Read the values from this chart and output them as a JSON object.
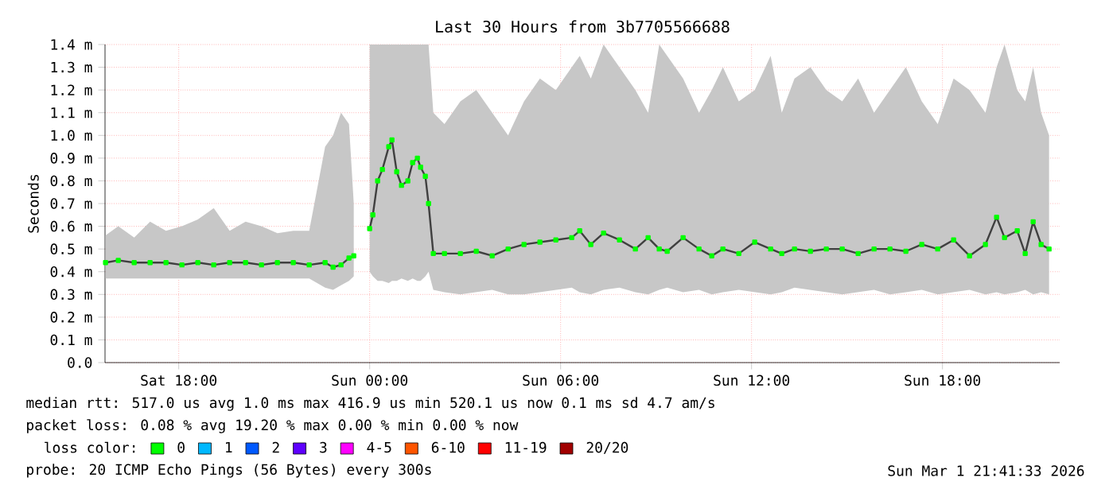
{
  "chart_data": {
    "type": "line",
    "title": "Last 30 Hours from 3b7705566688",
    "ylabel": "Seconds",
    "x": [
      "2026-02-28T15:42",
      "2026-02-28T16:06",
      "2026-02-28T16:36",
      "2026-02-28T17:06",
      "2026-02-28T17:36",
      "2026-02-28T18:06",
      "2026-02-28T18:36",
      "2026-02-28T19:06",
      "2026-02-28T19:36",
      "2026-02-28T20:06",
      "2026-02-28T20:36",
      "2026-02-28T21:06",
      "2026-02-28T21:36",
      "2026-02-28T22:06",
      "2026-02-28T22:36",
      "2026-02-28T22:51",
      "2026-02-28T23:06",
      "2026-02-28T23:21",
      "2026-02-28T23:30",
      "2026-02-28T23:45",
      "2026-03-01T00:00",
      "2026-03-01T00:06",
      "2026-03-01T00:15",
      "2026-03-01T00:24",
      "2026-03-01T00:36",
      "2026-03-01T00:42",
      "2026-03-01T00:51",
      "2026-03-01T01:00",
      "2026-03-01T01:12",
      "2026-03-01T01:21",
      "2026-03-01T01:30",
      "2026-03-01T01:36",
      "2026-03-01T01:45",
      "2026-03-01T01:51",
      "2026-03-01T02:00",
      "2026-03-01T02:21",
      "2026-03-01T02:51",
      "2026-03-01T03:21",
      "2026-03-01T03:51",
      "2026-03-01T04:21",
      "2026-03-01T04:51",
      "2026-03-01T05:21",
      "2026-03-01T05:51",
      "2026-03-01T06:21",
      "2026-03-01T06:36",
      "2026-03-01T06:57",
      "2026-03-01T07:21",
      "2026-03-01T07:51",
      "2026-03-01T08:21",
      "2026-03-01T08:45",
      "2026-03-01T09:06",
      "2026-03-01T09:21",
      "2026-03-01T09:51",
      "2026-03-01T10:21",
      "2026-03-01T10:45",
      "2026-03-01T11:06",
      "2026-03-01T11:36",
      "2026-03-01T12:06",
      "2026-03-01T12:36",
      "2026-03-01T12:57",
      "2026-03-01T13:21",
      "2026-03-01T13:51",
      "2026-03-01T14:21",
      "2026-03-01T14:51",
      "2026-03-01T15:21",
      "2026-03-01T15:51",
      "2026-03-01T16:21",
      "2026-03-01T16:51",
      "2026-03-01T17:21",
      "2026-03-01T17:51",
      "2026-03-01T18:21",
      "2026-03-01T18:51",
      "2026-03-01T19:21",
      "2026-03-01T19:42",
      "2026-03-01T19:57",
      "2026-03-01T20:21",
      "2026-03-01T20:36",
      "2026-03-01T20:51",
      "2026-03-01T21:06",
      "2026-03-01T21:21"
    ],
    "series": [
      {
        "name": "0",
        "color": "#00ff00",
        "values": [
          0.44,
          0.45,
          0.44,
          0.44,
          0.44,
          0.43,
          0.44,
          0.43,
          0.44,
          0.44,
          0.43,
          0.44,
          0.44,
          0.43,
          0.44,
          0.42,
          0.43,
          0.46,
          0.47,
          null,
          0.59,
          0.65,
          0.8,
          0.85,
          0.95,
          0.98,
          0.84,
          0.78,
          0.8,
          0.88,
          0.9,
          0.86,
          0.82,
          0.7,
          0.48,
          0.48,
          0.48,
          0.49,
          0.47,
          0.5,
          0.52,
          0.53,
          0.54,
          0.55,
          0.58,
          0.52,
          0.57,
          0.54,
          0.5,
          0.55,
          0.5,
          0.49,
          0.55,
          0.5,
          0.47,
          0.5,
          0.48,
          0.53,
          0.5,
          0.48,
          0.5,
          0.49,
          0.5,
          0.5,
          0.48,
          0.5,
          0.5,
          0.49,
          0.52,
          0.5,
          0.54,
          0.47,
          0.52,
          0.64,
          0.55,
          0.58,
          0.48,
          0.62,
          0.52,
          0.5
        ],
        "lower": [
          0.37,
          0.37,
          0.37,
          0.37,
          0.37,
          0.37,
          0.37,
          0.37,
          0.37,
          0.37,
          0.37,
          0.37,
          0.37,
          0.37,
          0.33,
          0.32,
          0.34,
          0.36,
          0.38,
          null,
          0.4,
          0.38,
          0.36,
          0.36,
          0.35,
          0.36,
          0.36,
          0.37,
          0.36,
          0.37,
          0.36,
          0.36,
          0.38,
          0.4,
          0.32,
          0.31,
          0.3,
          0.31,
          0.32,
          0.3,
          0.3,
          0.31,
          0.32,
          0.33,
          0.31,
          0.3,
          0.32,
          0.33,
          0.31,
          0.3,
          0.32,
          0.33,
          0.31,
          0.32,
          0.3,
          0.31,
          0.32,
          0.31,
          0.3,
          0.31,
          0.33,
          0.32,
          0.31,
          0.3,
          0.31,
          0.32,
          0.3,
          0.31,
          0.32,
          0.3,
          0.31,
          0.32,
          0.3,
          0.31,
          0.3,
          0.31,
          0.32,
          0.3,
          0.31,
          0.3
        ],
        "upper": [
          0.56,
          0.6,
          0.55,
          0.62,
          0.58,
          0.6,
          0.63,
          0.68,
          0.58,
          0.62,
          0.6,
          0.57,
          0.58,
          0.58,
          0.95,
          1.0,
          1.1,
          1.05,
          0.7,
          null,
          1.4,
          1.4,
          1.4,
          1.4,
          1.4,
          1.4,
          1.4,
          1.4,
          1.4,
          1.4,
          1.4,
          1.4,
          1.4,
          1.4,
          1.1,
          1.05,
          1.15,
          1.2,
          1.1,
          1.0,
          1.15,
          1.25,
          1.2,
          1.3,
          1.35,
          1.25,
          1.4,
          1.3,
          1.2,
          1.1,
          1.4,
          1.35,
          1.25,
          1.1,
          1.2,
          1.3,
          1.15,
          1.2,
          1.35,
          1.1,
          1.25,
          1.3,
          1.2,
          1.15,
          1.25,
          1.1,
          1.2,
          1.3,
          1.15,
          1.05,
          1.25,
          1.2,
          1.1,
          1.3,
          1.4,
          1.2,
          1.15,
          1.3,
          1.1,
          1.0
        ]
      },
      {
        "name": "1",
        "color": "#00b8ff",
        "values": [
          null,
          null,
          null,
          null,
          null,
          null,
          null,
          null,
          null,
          null,
          null,
          null,
          null,
          null,
          null,
          null,
          null,
          null,
          null,
          null,
          null,
          null,
          null,
          null,
          null,
          null,
          null,
          null,
          null,
          null,
          null,
          null,
          null,
          null,
          null,
          null,
          null,
          null,
          null,
          null,
          null,
          null,
          null,
          null,
          null,
          null,
          null,
          null,
          null,
          null,
          null,
          null,
          null,
          null,
          null,
          null,
          null,
          null,
          null,
          null,
          null,
          null,
          null,
          null,
          null,
          null,
          null,
          null,
          null,
          null,
          null,
          null,
          null,
          null,
          null,
          null,
          null,
          null,
          null,
          null
        ]
      },
      {
        "name": "2",
        "color": "#0059ff",
        "values": [
          null,
          null,
          null,
          null,
          null,
          null,
          null,
          null,
          null,
          null,
          null,
          null,
          null,
          null,
          null,
          null,
          null,
          null,
          null,
          null,
          null,
          null,
          null,
          null,
          null,
          null,
          null,
          null,
          null,
          null,
          null,
          null,
          null,
          null,
          null,
          null,
          null,
          null,
          null,
          null,
          null,
          null,
          null,
          null,
          null,
          null,
          null,
          null,
          null,
          null,
          null,
          null,
          null,
          null,
          null,
          null,
          null,
          null,
          null,
          null,
          null,
          null,
          null,
          null,
          null,
          null,
          null,
          null,
          null,
          null,
          null,
          null,
          null,
          null,
          null,
          null,
          null,
          null,
          null,
          null
        ]
      },
      {
        "name": "3",
        "color": "#5e00ff",
        "values": [
          null,
          null,
          null,
          null,
          null,
          null,
          null,
          null,
          null,
          null,
          null,
          null,
          null,
          null,
          null,
          null,
          null,
          null,
          null,
          null,
          null,
          null,
          null,
          null,
          null,
          null,
          null,
          null,
          null,
          null,
          null,
          null,
          null,
          null,
          null,
          null,
          null,
          null,
          null,
          null,
          null,
          null,
          null,
          null,
          null,
          null,
          null,
          null,
          null,
          null,
          null,
          null,
          null,
          null,
          null,
          null,
          null,
          null,
          null,
          null,
          null,
          null,
          null,
          null,
          null,
          null,
          null,
          null,
          null,
          null,
          null,
          null,
          null,
          null,
          null,
          null,
          null,
          null,
          null,
          null
        ]
      },
      {
        "name": "4-5",
        "color": "#ff00ff",
        "values": [
          null,
          null,
          null,
          null,
          null,
          null,
          null,
          null,
          null,
          null,
          null,
          null,
          null,
          null,
          null,
          null,
          null,
          null,
          null,
          null,
          null,
          null,
          null,
          null,
          null,
          null,
          null,
          null,
          null,
          null,
          null,
          null,
          null,
          null,
          null,
          null,
          null,
          null,
          null,
          null,
          null,
          null,
          null,
          null,
          null,
          null,
          null,
          null,
          null,
          null,
          null,
          null,
          null,
          null,
          null,
          null,
          null,
          null,
          null,
          null,
          null,
          null,
          null,
          null,
          null,
          null,
          null,
          null,
          null,
          null,
          null,
          null,
          null,
          null,
          null,
          null,
          null,
          null,
          null,
          null
        ]
      },
      {
        "name": "6-10",
        "color": "#ff5500",
        "values": [
          null,
          null,
          null,
          null,
          null,
          null,
          null,
          null,
          null,
          null,
          null,
          null,
          null,
          null,
          null,
          null,
          null,
          null,
          null,
          null,
          null,
          null,
          null,
          null,
          null,
          null,
          null,
          null,
          null,
          null,
          null,
          null,
          null,
          null,
          null,
          null,
          null,
          null,
          null,
          null,
          null,
          null,
          null,
          null,
          null,
          null,
          null,
          null,
          null,
          null,
          null,
          null,
          null,
          null,
          null,
          null,
          null,
          null,
          null,
          null,
          null,
          null,
          null,
          null,
          null,
          null,
          null,
          null,
          null,
          null,
          null,
          null,
          null,
          null,
          null,
          null,
          null,
          null,
          null,
          null
        ]
      },
      {
        "name": "11-19",
        "color": "#ff0000",
        "values": [
          null,
          null,
          null,
          null,
          null,
          null,
          null,
          null,
          null,
          null,
          null,
          null,
          null,
          null,
          null,
          null,
          null,
          null,
          null,
          null,
          null,
          null,
          null,
          null,
          null,
          null,
          null,
          null,
          null,
          null,
          null,
          null,
          null,
          null,
          null,
          null,
          null,
          null,
          null,
          null,
          null,
          null,
          null,
          null,
          null,
          null,
          null,
          null,
          null,
          null,
          null,
          null,
          null,
          null,
          null,
          null,
          null,
          null,
          null,
          null,
          null,
          null,
          null,
          null,
          null,
          null,
          null,
          null,
          null,
          null,
          null,
          null,
          null,
          null,
          null,
          null,
          null,
          null,
          null,
          null
        ]
      },
      {
        "name": "20/20",
        "color": "#a10000",
        "values": [
          null,
          null,
          null,
          null,
          null,
          null,
          null,
          null,
          null,
          null,
          null,
          null,
          null,
          null,
          null,
          null,
          null,
          null,
          null,
          null,
          null,
          null,
          null,
          null,
          null,
          null,
          null,
          null,
          null,
          null,
          null,
          null,
          null,
          null,
          null,
          null,
          null,
          null,
          null,
          null,
          null,
          null,
          null,
          null,
          null,
          null,
          null,
          null,
          null,
          null,
          null,
          null,
          null,
          null,
          null,
          null,
          null,
          null,
          null,
          null,
          null,
          null,
          null,
          null,
          null,
          null,
          null,
          null,
          null,
          null,
          null,
          null,
          null,
          null,
          null,
          null,
          null,
          null,
          null,
          null
        ]
      }
    ],
    "legend": "bottom",
    "legend_title": "loss color:",
    "xlim": [
      "2026-02-28T15:41",
      "2026-03-01T21:41"
    ],
    "xticks": [
      {
        "value": "2026-02-28T18:00",
        "label": "Sat 18:00"
      },
      {
        "value": "2026-03-01T00:00",
        "label": "Sun 00:00"
      },
      {
        "value": "2026-03-01T06:00",
        "label": "Sun 06:00"
      },
      {
        "value": "2026-03-01T12:00",
        "label": "Sun 12:00"
      },
      {
        "value": "2026-03-01T18:00",
        "label": "Sun 18:00"
      }
    ],
    "ylim": [
      0,
      1.4
    ],
    "yticks": [
      {
        "value": 0,
        "label": "0.0"
      },
      {
        "value": 0.1,
        "label": "0.1 m"
      },
      {
        "value": 0.2,
        "label": "0.2 m"
      },
      {
        "value": 0.3,
        "label": "0.3 m"
      },
      {
        "value": 0.4,
        "label": "0.4 m"
      },
      {
        "value": 0.5,
        "label": "0.5 m"
      },
      {
        "value": 0.6,
        "label": "0.6 m"
      },
      {
        "value": 0.7,
        "label": "0.7 m"
      },
      {
        "value": 0.8,
        "label": "0.8 m"
      },
      {
        "value": 0.9,
        "label": "0.9 m"
      },
      {
        "value": 1.0,
        "label": "1.0 m"
      },
      {
        "value": 1.1,
        "label": "1.1 m"
      },
      {
        "value": 1.2,
        "label": "1.2 m"
      },
      {
        "value": 1.3,
        "label": "1.3 m"
      },
      {
        "value": 1.4,
        "label": "1.4 m"
      }
    ],
    "grid": true,
    "marker": "square",
    "annotations": [
      "median rtt: 517.0 us avg 1.0 ms max 416.9 us min 520.1 us now 0.1 ms sd 4.7 am/s",
      "packet loss: 0.08 % avg 19.20 % max 0.00 % min 0.00 % now",
      "probe: 20 ICMP Echo Pings (56 Bytes) every 300s",
      "Sun Mar 1 21:41:33 2026"
    ]
  }
}
